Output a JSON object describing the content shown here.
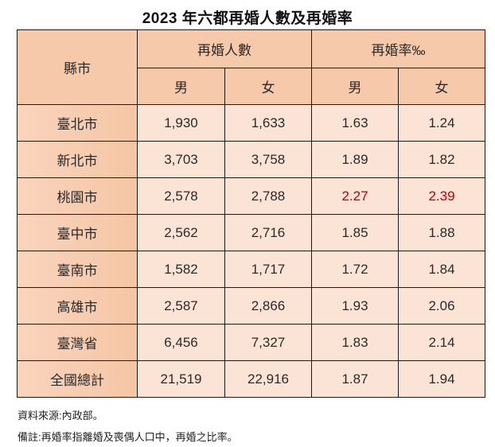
{
  "title": "2023 年六都再婚人數及再婚率",
  "table": {
    "header": {
      "city": "縣市",
      "group_count": "再婚人數",
      "group_rate": "再婚率‰",
      "male": "男",
      "female": "女"
    },
    "rows": [
      {
        "city": "臺北市",
        "count_male": "1,930",
        "count_female": "1,633",
        "rate_male": "1.63",
        "rate_female": "1.24"
      },
      {
        "city": "新北市",
        "count_male": "3,703",
        "count_female": "3,758",
        "rate_male": "1.89",
        "rate_female": "1.82"
      },
      {
        "city": "桃園市",
        "count_male": "2,578",
        "count_female": "2,788",
        "rate_male": "2.27",
        "rate_female": "2.39"
      },
      {
        "city": "臺中市",
        "count_male": "2,562",
        "count_female": "2,716",
        "rate_male": "1.85",
        "rate_female": "1.88"
      },
      {
        "city": "臺南市",
        "count_male": "1,582",
        "count_female": "1,717",
        "rate_male": "1.72",
        "rate_female": "1.84"
      },
      {
        "city": "高雄市",
        "count_male": "2,587",
        "count_female": "2,866",
        "rate_male": "1.93",
        "rate_female": "2.06"
      },
      {
        "city": "臺灣省",
        "count_male": "6,456",
        "count_female": "7,327",
        "rate_male": "1.83",
        "rate_female": "2.14"
      },
      {
        "city": "全國總計",
        "count_male": "21,519",
        "count_female": "22,916",
        "rate_male": "1.87",
        "rate_female": "1.94"
      }
    ],
    "highlight_color": "#C00000",
    "header_color": "#F6C9AA",
    "cell_color": "#FBE3D6"
  },
  "notes": {
    "source": "資料來源:內政部。",
    "remark": "備註:再婚率指離婚及喪偶人口中，再婚之比率。"
  }
}
